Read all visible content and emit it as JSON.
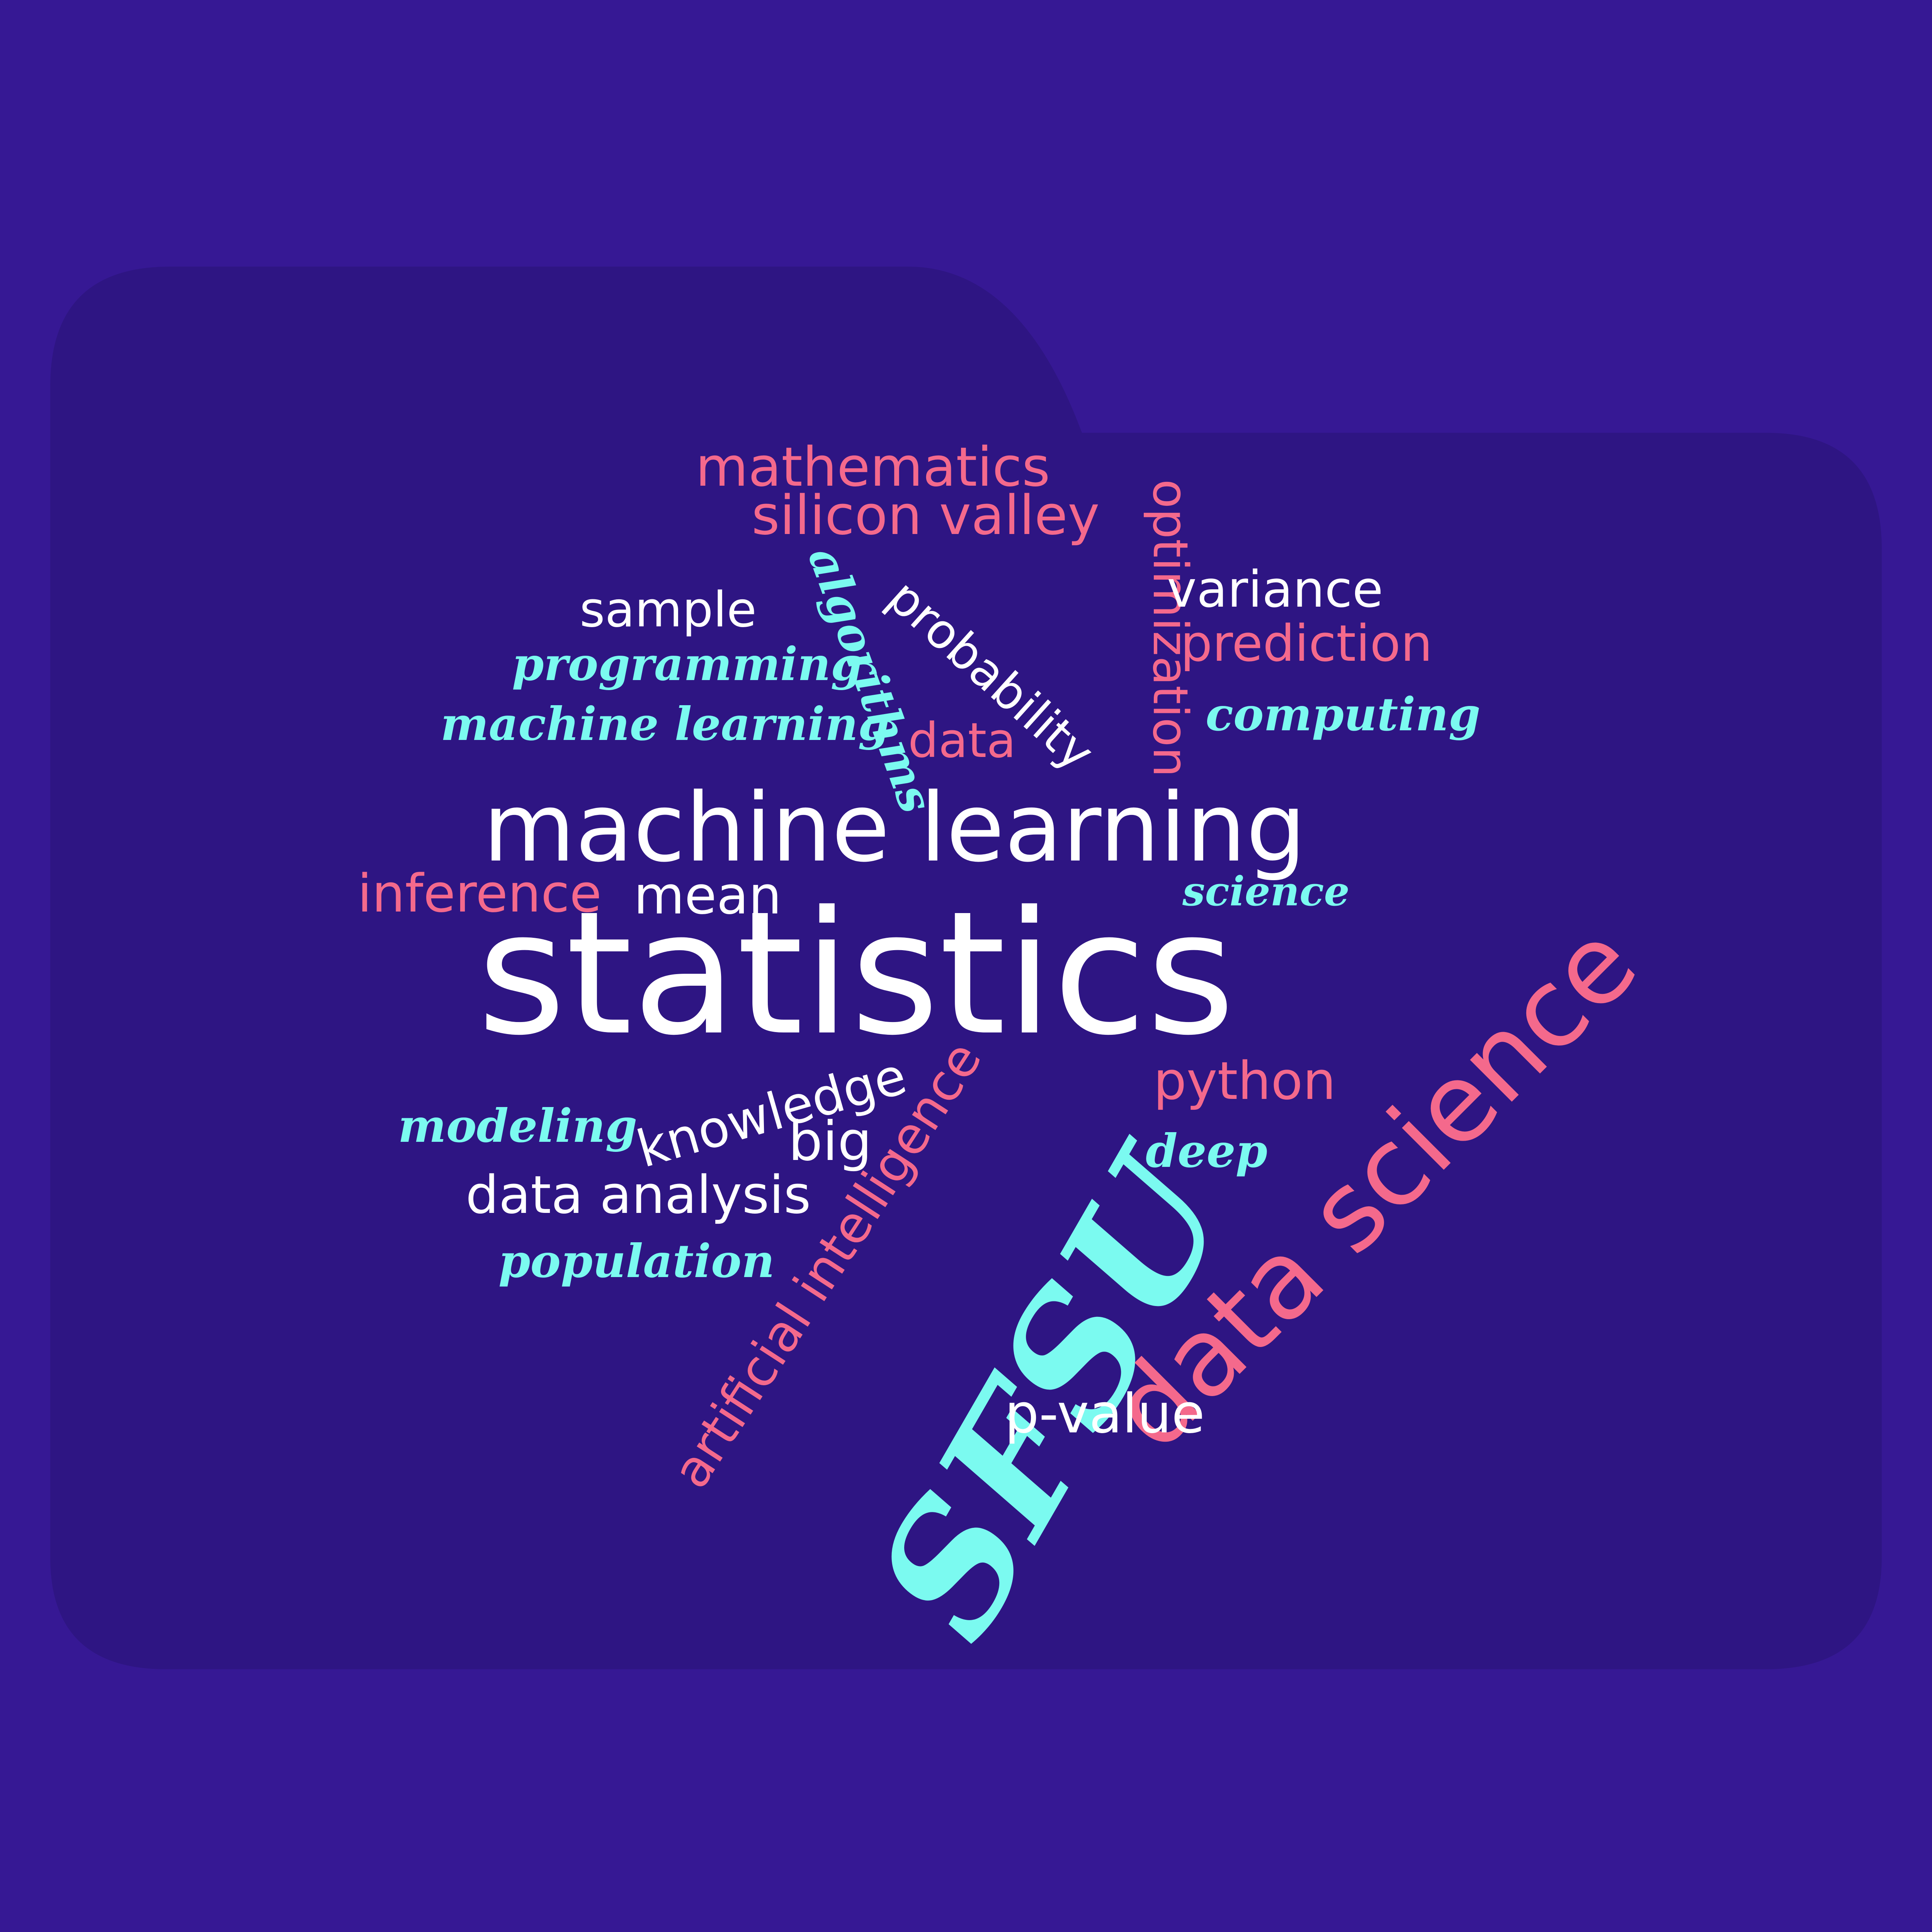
{
  "colors": {
    "background": "#361894",
    "folder": "#2e1583",
    "white": "#ffffff",
    "pink": "#f4698c",
    "cyan": "#7bfaf0"
  },
  "words": {
    "mathematics": "mathematics",
    "silicon_valley": "silicon valley",
    "optimization": "optimization",
    "algorithms": "algorithms",
    "sample": "sample",
    "probability": "probability",
    "variance": "variance",
    "prediction": "prediction",
    "programming": "programming",
    "machine_learning_small": "machine learning",
    "data_small": "data",
    "computing": "computing",
    "machine_learning_large": "machine learning",
    "inference": "inference",
    "mean": "mean",
    "science": "science",
    "statistics": "statistics",
    "modeling": "modeling",
    "knowledge": "knowledge",
    "artificial_intelligence": "artificial intelligence",
    "sfsu": "SFSU",
    "python": "python",
    "big": "big",
    "deep": "deep",
    "data_science": "data science",
    "data_analysis": "data analysis",
    "population": "population",
    "p_value": "p-value"
  }
}
